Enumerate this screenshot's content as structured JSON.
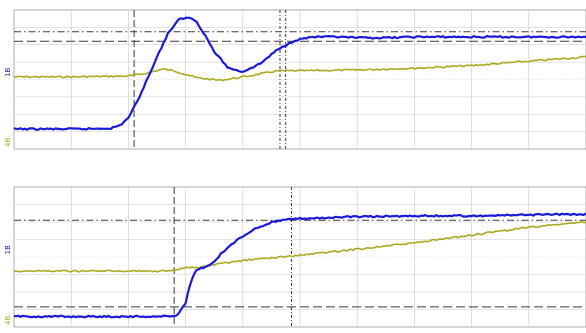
{
  "colors": {
    "background": "#ffffff",
    "grid": "#c9c9c9",
    "cursor": "#3a3a3a",
    "ch1": "#1a1ad8",
    "ch2": "#aaaa22"
  },
  "chart_data": [
    {
      "type": "line",
      "title": "",
      "xlim": [
        0,
        10
      ],
      "ylim": [
        -4,
        4
      ],
      "grid": true,
      "channel_labels": [
        "1B",
        "4B"
      ],
      "series": [
        {
          "color": "#1a1ad8",
          "x": [
            0,
            1.2,
            1.7,
            1.85,
            2.0,
            2.15,
            2.3,
            2.5,
            2.7,
            2.9,
            3.1,
            3.2,
            3.35,
            3.5,
            3.75,
            4.0,
            4.3,
            4.6,
            4.9,
            5.2,
            5.6,
            6.0,
            6.5,
            7.0,
            7.5,
            8.0,
            8.5,
            9.0,
            9.5,
            10.0
          ],
          "y": [
            -2.85,
            -2.85,
            -2.8,
            -2.65,
            -2.2,
            -1.3,
            -0.2,
            1.3,
            2.7,
            3.5,
            3.55,
            3.3,
            2.5,
            1.6,
            0.65,
            0.45,
            0.9,
            1.7,
            2.25,
            2.45,
            2.45,
            2.4,
            2.4,
            2.45,
            2.45,
            2.45,
            2.45,
            2.45,
            2.45,
            2.45
          ]
        },
        {
          "color": "#aaaa22",
          "x": [
            0,
            1.0,
            2.0,
            2.3,
            2.6,
            2.8,
            3.2,
            3.6,
            4.1,
            4.6,
            5.0,
            6.0,
            7.0,
            8.0,
            9.0,
            10.0
          ],
          "y": [
            0.15,
            0.15,
            0.2,
            0.35,
            0.6,
            0.5,
            0.1,
            -0.05,
            0.2,
            0.5,
            0.5,
            0.55,
            0.65,
            0.8,
            1.05,
            1.3
          ]
        }
      ],
      "markers": {
        "horizontal": [
          2.75,
          2.2
        ],
        "vertical": [
          2.1,
          4.65,
          4.75
        ]
      }
    },
    {
      "type": "line",
      "title": "",
      "xlim": [
        0,
        10
      ],
      "ylim": [
        -4,
        4
      ],
      "grid": true,
      "channel_labels": [
        "1B",
        "4B"
      ],
      "series": [
        {
          "color": "#1a1ad8",
          "x": [
            0,
            2.5,
            2.85,
            3.0,
            3.1,
            3.2,
            3.35,
            3.5,
            3.65,
            3.8,
            4.0,
            4.2,
            4.5,
            4.8,
            5.0,
            5.5,
            6.0,
            7.0,
            8.0,
            9.0,
            10.0
          ],
          "y": [
            -3.4,
            -3.4,
            -3.35,
            -2.6,
            -1.3,
            -0.7,
            -0.6,
            -0.3,
            0.3,
            0.7,
            1.2,
            1.6,
            2.0,
            2.15,
            2.2,
            2.25,
            2.3,
            2.35,
            2.35,
            2.4,
            2.45
          ]
        },
        {
          "color": "#aaaa22",
          "x": [
            0,
            2.8,
            3.0,
            3.2,
            3.6,
            4.0,
            5.0,
            6.0,
            7.0,
            8.0,
            9.0,
            10.0
          ],
          "y": [
            -0.8,
            -0.8,
            -0.6,
            -0.6,
            -0.4,
            -0.2,
            0.1,
            0.45,
            0.8,
            1.25,
            1.7,
            2.0
          ]
        }
      ],
      "markers": {
        "horizontal": [
          2.1,
          -2.85
        ],
        "vertical": [
          2.8,
          4.85
        ]
      }
    }
  ]
}
